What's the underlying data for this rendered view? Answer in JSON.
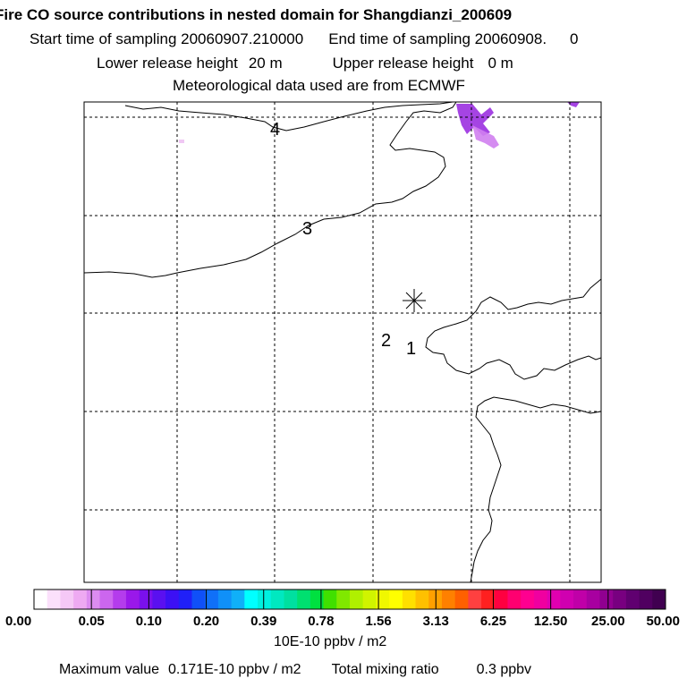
{
  "header": {
    "title": "Fire CO source contributions in nested domain for Shangdianzi_200609",
    "start_label": "Start time of sampling 20060907.210000",
    "end_label": "End time of sampling 20060908.",
    "end_value": "0",
    "lower_release_label": "Lower release height",
    "lower_release_value": "20 m",
    "upper_release_label": "Upper release height",
    "upper_release_value": "0 m",
    "met_source": "Meteorological data used are from ECMWF"
  },
  "map": {
    "contour_labels": [
      "4",
      "3",
      "2",
      "1"
    ],
    "station_marker": "asterisk",
    "plume_color_strong": "#9b30e0",
    "plume_color_light": "#d080f0"
  },
  "colorbar": {
    "ticks": [
      "0.00",
      "0.05",
      "0.10",
      "0.20",
      "0.39",
      "0.78",
      "1.56",
      "3.13",
      "6.25",
      "12.50",
      "25.00",
      "50.00"
    ],
    "colors": [
      "#ffffff",
      "#fbe0fb",
      "#f5c8f6",
      "#eeaaf2",
      "#dc8cf0",
      "#cc66ee",
      "#b43cec",
      "#9a18ea",
      "#7a10ec",
      "#5a10f0",
      "#3c10f4",
      "#2020f8",
      "#1050f8",
      "#1070f8",
      "#1090f8",
      "#10b0f8",
      "#00ffff",
      "#00f0e0",
      "#00e8c0",
      "#00e0a0",
      "#00e070",
      "#00e040",
      "#40e000",
      "#80e800",
      "#b0f000",
      "#d0f400",
      "#f0f800",
      "#ffff00",
      "#ffe000",
      "#ffc000",
      "#ffa000",
      "#ff8000",
      "#ff6000",
      "#ff4040",
      "#ff2020",
      "#ff0040",
      "#ff0070",
      "#ff0090",
      "#f000a0",
      "#e000b0",
      "#d000b0",
      "#c000a8",
      "#a800a0",
      "#900090",
      "#780080",
      "#600070",
      "#500060",
      "#400050"
    ],
    "unit": "10E-10 ppbv / m2"
  },
  "footer": {
    "max_label": "Maximum value",
    "max_value": "0.171E-10 ppbv / m2",
    "total_label": "Total mixing ratio",
    "total_value": "0.3 ppbv"
  }
}
